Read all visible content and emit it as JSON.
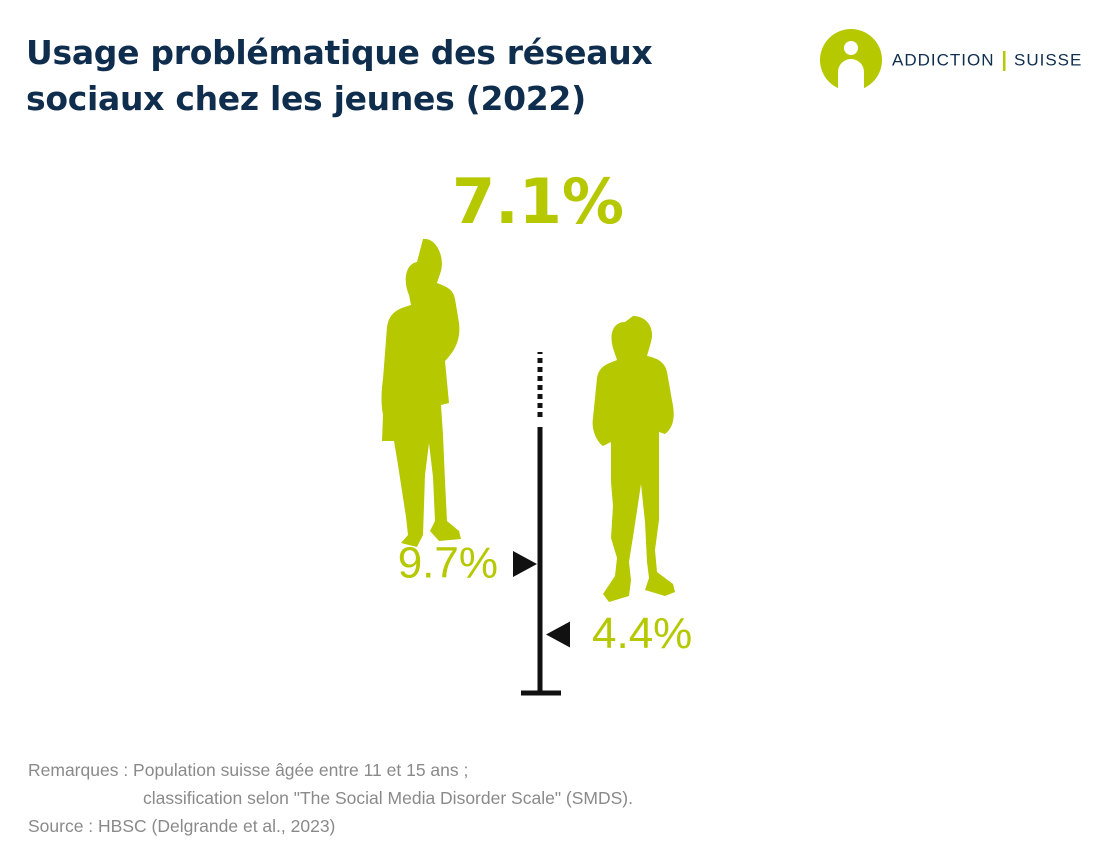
{
  "header": {
    "logo_words": [
      "ADDICTION",
      "SUISSE"
    ]
  },
  "chart_data": {
    "type": "marker",
    "title": "Usage problématique des réseaux sociaux chez les jeunes (2022)",
    "total": {
      "value": 7.1,
      "label": "7.1%"
    },
    "values": [
      9.7,
      4.4
    ],
    "value_labels": [
      "9.7%",
      "4.4%"
    ],
    "color": "#b5c800",
    "ylim": [
      0,
      20
    ]
  },
  "notes": [
    "Remarques : Population suisse âgée entre 11 et 15 ans ;",
    "classification selon \"The Social Media Disorder Scale\" (SMDS).",
    "Source : HBSC (Delgrande et al., 2023)"
  ]
}
